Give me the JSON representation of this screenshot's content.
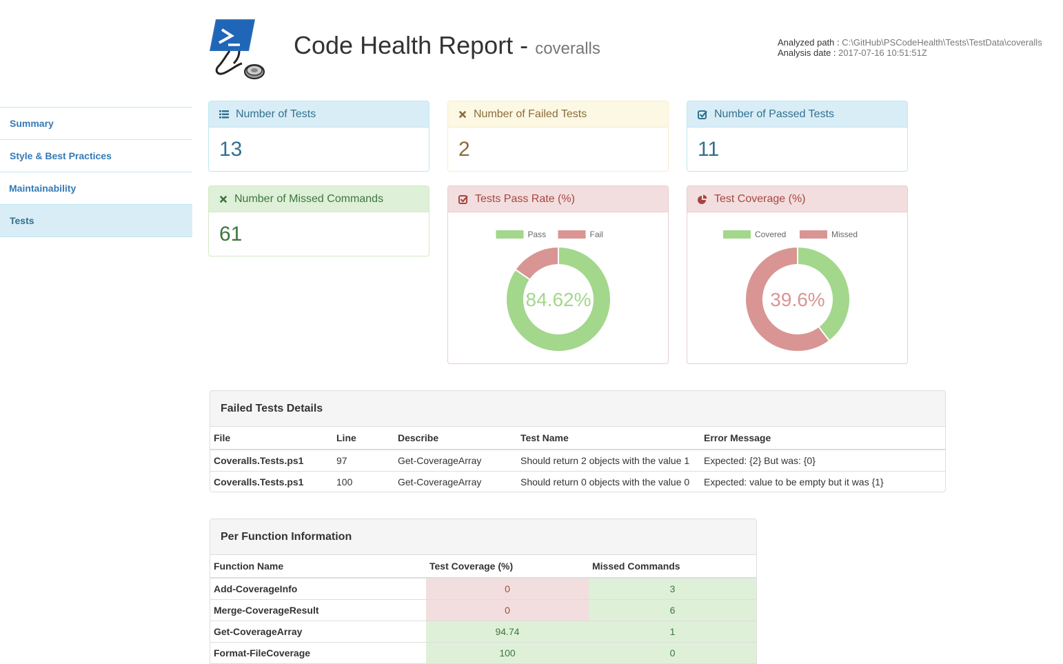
{
  "header": {
    "title": "Code Health Report - ",
    "subtitle": "coveralls",
    "analyzed_path_label": "Analyzed path : ",
    "analyzed_path": "C:\\GitHub\\PSCodeHealth\\Tests\\TestData\\coveralls",
    "analysis_date_label": "Analysis date : ",
    "analysis_date": "2017-07-16 10:51:51Z",
    "logo_icon": "powershell-stethoscope-logo"
  },
  "sidebar": {
    "items": [
      {
        "label": "Summary",
        "active": false
      },
      {
        "label": "Style & Best Practices",
        "active": false
      },
      {
        "label": "Maintainability",
        "active": false
      },
      {
        "label": "Tests",
        "active": true
      }
    ]
  },
  "panels": {
    "tests": {
      "title": "Number of Tests",
      "value": "13",
      "icon": "list-icon"
    },
    "failed": {
      "title": "Number of Failed Tests",
      "value": "2",
      "icon": "x-icon"
    },
    "passed": {
      "title": "Number of Passed Tests",
      "value": "11",
      "icon": "check-square-icon"
    },
    "missed": {
      "title": "Number of Missed Commands",
      "value": "61",
      "icon": "x-icon"
    },
    "pass_rate": {
      "title": "Tests Pass Rate (%)",
      "icon": "check-square-icon"
    },
    "coverage": {
      "title": "Test Coverage (%)",
      "icon": "pie-chart-icon"
    }
  },
  "colors": {
    "green": "#a3d78c",
    "red": "#d99593",
    "green_text": "#a3d78c",
    "red_text": "#d99593"
  },
  "chart_data": [
    {
      "type": "pie",
      "title": "Tests Pass Rate (%)",
      "categories": [
        "Pass",
        "Fail"
      ],
      "values": [
        84.62,
        15.38
      ],
      "center_label": "84.62%",
      "legend": "top"
    },
    {
      "type": "pie",
      "title": "Test Coverage (%)",
      "categories": [
        "Covered",
        "Missed"
      ],
      "values": [
        39.6,
        60.4
      ],
      "center_label": "39.6%",
      "legend": "top"
    }
  ],
  "failed_tests": {
    "title": "Failed Tests Details",
    "columns": [
      "File",
      "Line",
      "Describe",
      "Test Name",
      "Error Message"
    ],
    "rows": [
      [
        "Coveralls.Tests.ps1",
        "97",
        "Get-CoverageArray",
        "Should return 2 objects with the value 1",
        "Expected: {2} But was: {0}"
      ],
      [
        "Coveralls.Tests.ps1",
        "100",
        "Get-CoverageArray",
        "Should return 0 objects with the value 0",
        "Expected: value to be empty but it was {1}"
      ]
    ]
  },
  "per_function": {
    "title": "Per Function Information",
    "columns": [
      "Function Name",
      "Test Coverage  (%)",
      "Missed Commands"
    ],
    "rows": [
      {
        "name": "Add-CoverageInfo",
        "coverage": "0",
        "missed": "3",
        "coverage_status": "bad",
        "missed_status": "good"
      },
      {
        "name": "Merge-CoverageResult",
        "coverage": "0",
        "missed": "6",
        "coverage_status": "bad",
        "missed_status": "good"
      },
      {
        "name": "Get-CoverageArray",
        "coverage": "94.74",
        "missed": "1",
        "coverage_status": "good",
        "missed_status": "good"
      },
      {
        "name": "Format-FileCoverage",
        "coverage": "100",
        "missed": "0",
        "coverage_status": "good",
        "missed_status": "good"
      }
    ]
  }
}
